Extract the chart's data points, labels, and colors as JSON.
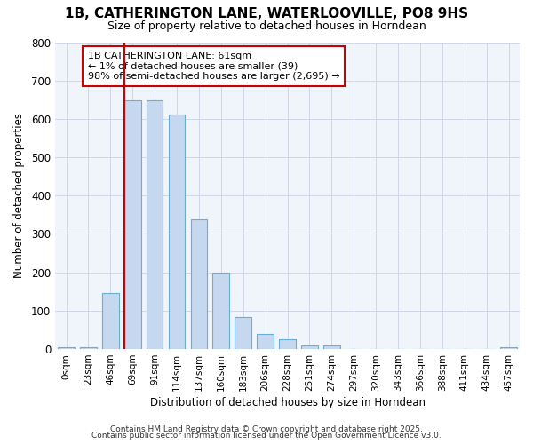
{
  "title_line1": "1B, CATHERINGTON LANE, WATERLOOVILLE, PO8 9HS",
  "title_line2": "Size of property relative to detached houses in Horndean",
  "xlabel": "Distribution of detached houses by size in Horndean",
  "ylabel": "Number of detached properties",
  "bin_labels": [
    "0sqm",
    "23sqm",
    "46sqm",
    "69sqm",
    "91sqm",
    "114sqm",
    "137sqm",
    "160sqm",
    "183sqm",
    "206sqm",
    "228sqm",
    "251sqm",
    "274sqm",
    "297sqm",
    "320sqm",
    "343sqm",
    "366sqm",
    "388sqm",
    "411sqm",
    "434sqm",
    "457sqm"
  ],
  "bar_values": [
    5,
    5,
    145,
    648,
    648,
    612,
    338,
    200,
    84,
    40,
    25,
    10,
    10,
    0,
    0,
    0,
    0,
    0,
    0,
    0,
    5
  ],
  "bar_color": "#c5d8f0",
  "bar_edge_color": "#6aaed6",
  "plot_bg_color": "#f0f4fb",
  "fig_bg_color": "#ffffff",
  "grid_color": "#d0d8e8",
  "red_line_index": 3,
  "annotation_text": "1B CATHERINGTON LANE: 61sqm\n← 1% of detached houses are smaller (39)\n98% of semi-detached houses are larger (2,695) →",
  "annotation_box_color": "#ffffff",
  "annotation_box_edge": "#cc0000",
  "ylim": [
    0,
    800
  ],
  "yticks": [
    0,
    100,
    200,
    300,
    400,
    500,
    600,
    700,
    800
  ],
  "footer_line1": "Contains HM Land Registry data © Crown copyright and database right 2025.",
  "footer_line2": "Contains public sector information licensed under the Open Government Licence v3.0."
}
